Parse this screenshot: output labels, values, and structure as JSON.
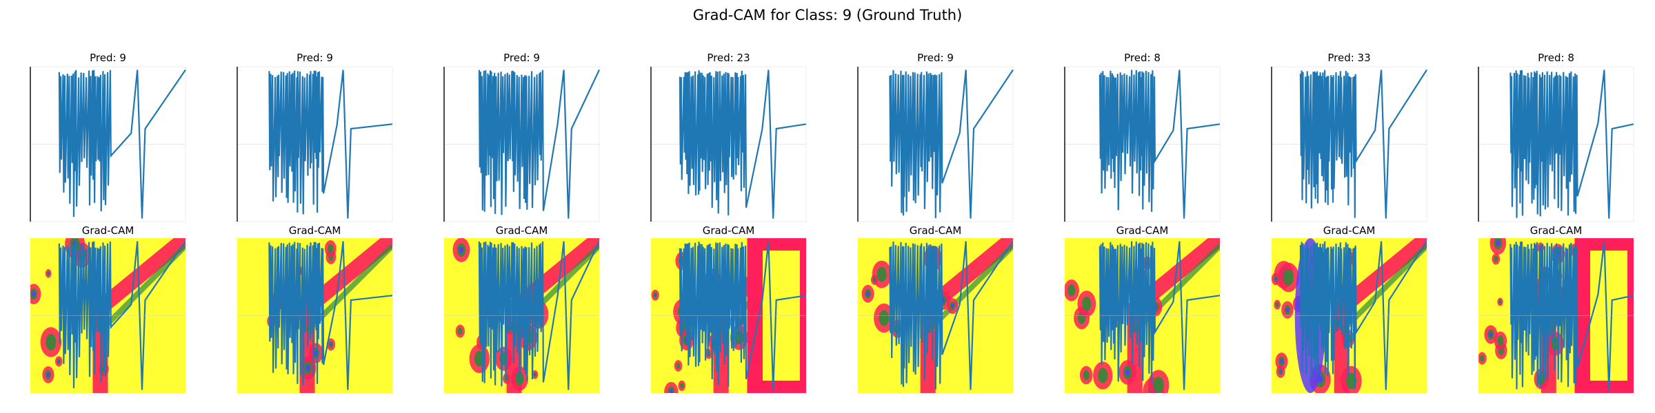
{
  "figure": {
    "title": "Grad-CAM for Class: 9 (Ground Truth)"
  },
  "colors": {
    "signal": "#1f77b4",
    "cam_background": "#ffff33",
    "cam_hot": "#ff1f5a",
    "cam_mid": "#2f8a3a",
    "cam_peak": "#5a3cff",
    "cam_light": "#9bb7ff"
  },
  "chart_data": [
    {
      "type": "line",
      "title": "Pred: 9",
      "heatmap_title": "Grad-CAM",
      "grid": true
    },
    {
      "type": "line",
      "title": "Pred: 9",
      "heatmap_title": "Grad-CAM",
      "grid": true
    },
    {
      "type": "line",
      "title": "Pred: 9",
      "heatmap_title": "Grad-CAM",
      "grid": true
    },
    {
      "type": "line",
      "title": "Pred: 23",
      "heatmap_title": "Grad-CAM",
      "grid": true
    },
    {
      "type": "line",
      "title": "Pred: 9",
      "heatmap_title": "Grad-CAM",
      "grid": true
    },
    {
      "type": "line",
      "title": "Pred: 8",
      "heatmap_title": "Grad-CAM",
      "grid": true
    },
    {
      "type": "line",
      "title": "Pred: 33",
      "heatmap_title": "Grad-CAM",
      "grid": true
    },
    {
      "type": "line",
      "title": "Pred: 8",
      "heatmap_title": "Grad-CAM",
      "grid": true
    }
  ]
}
